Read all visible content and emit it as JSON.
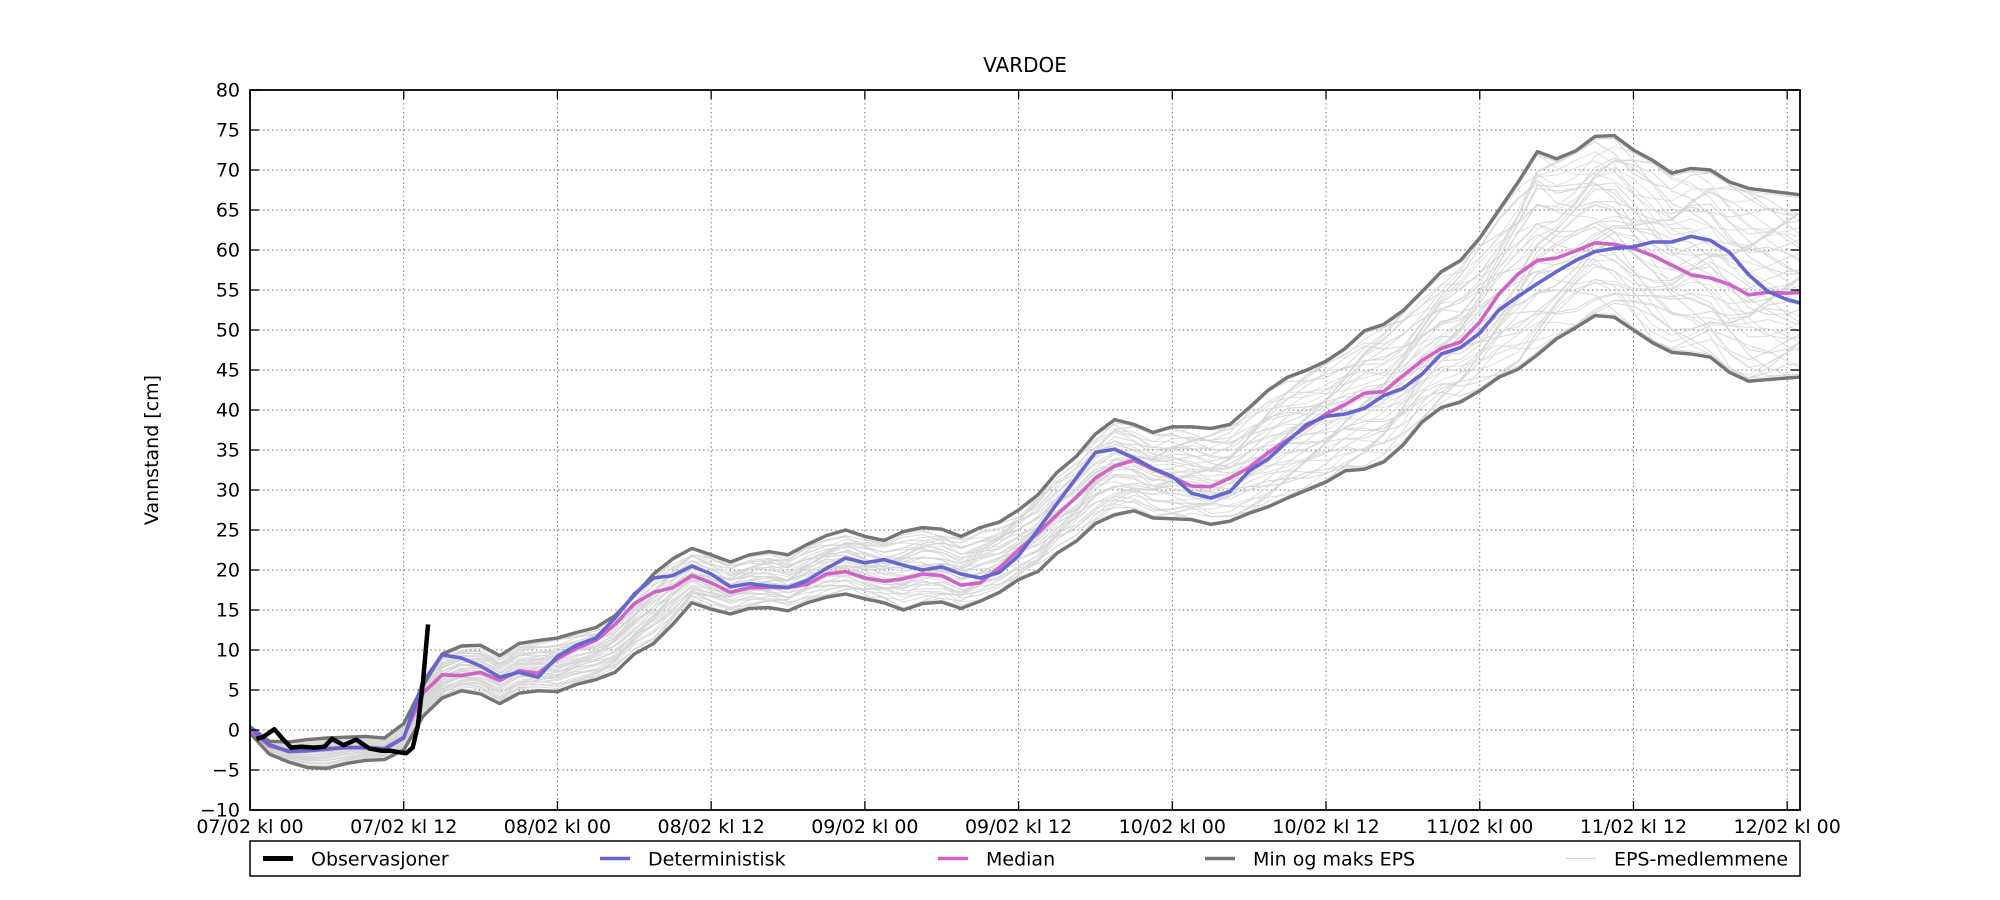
{
  "chart_data": {
    "type": "line",
    "title": "VARDOE",
    "xlabel": "",
    "ylabel": "Vannstand [cm]",
    "ylim": [
      -10,
      80
    ],
    "ytick_step": 5,
    "xlim_hours": [
      0,
      121
    ],
    "grid": true,
    "grid_style": "dotted",
    "legend_position": "bottom-expanded",
    "xticks": [
      {
        "hour": 0,
        "label": "07/02 kl 00"
      },
      {
        "hour": 12,
        "label": "07/02 kl 12"
      },
      {
        "hour": 24,
        "label": "08/02 kl 00"
      },
      {
        "hour": 36,
        "label": "08/02 kl 12"
      },
      {
        "hour": 48,
        "label": "09/02 kl 00"
      },
      {
        "hour": 60,
        "label": "09/02 kl 12"
      },
      {
        "hour": 72,
        "label": "10/02 kl 00"
      },
      {
        "hour": 84,
        "label": "10/02 kl 12"
      },
      {
        "hour": 96,
        "label": "11/02 kl 00"
      },
      {
        "hour": 108,
        "label": "11/02 kl 12"
      },
      {
        "hour": 120,
        "label": "12/02 kl 00"
      }
    ],
    "step_hours": 1.5,
    "tail_hour": 121,
    "series": {
      "observations": {
        "label": "Observasjoner",
        "color": "#000000",
        "line_width": 4.5,
        "points": [
          [
            0.5,
            -1.1
          ],
          [
            1,
            -0.9
          ],
          [
            1.9,
            0.1
          ],
          [
            2.6,
            -1.2
          ],
          [
            3.2,
            -2.2
          ],
          [
            4,
            -2.1
          ],
          [
            5,
            -2.2
          ],
          [
            5.8,
            -2.1
          ],
          [
            6.4,
            -1.1
          ],
          [
            7.3,
            -1.9
          ],
          [
            8.3,
            -1.2
          ],
          [
            9.3,
            -2.3
          ],
          [
            10.3,
            -2.6
          ],
          [
            11,
            -2.6
          ],
          [
            11.7,
            -2.8
          ],
          [
            12.2,
            -2.9
          ],
          [
            12.7,
            -2.2
          ],
          [
            13.1,
            0.5
          ],
          [
            13.5,
            6.0
          ],
          [
            13.9,
            13.2
          ]
        ]
      },
      "deterministic": {
        "label": "Deterministisk",
        "color": "#6666cf",
        "line_width": 3.6,
        "values": [
          0.3,
          -1.8,
          -2.7,
          -2.6,
          -2.4,
          -2.2,
          -2.2,
          -2.4,
          -1.0,
          6.0,
          9.4,
          9.0,
          8.0,
          6.6,
          7.2,
          6.6,
          9.2,
          10.6,
          11.5,
          14.0,
          17.0,
          19.0,
          19.3,
          20.5,
          19.5,
          17.9,
          18.3,
          18.0,
          17.8,
          18.7,
          20.2,
          21.5,
          20.9,
          21.3,
          20.6,
          20.0,
          20.4,
          19.5,
          19.0,
          19.7,
          21.8,
          25.0,
          28.3,
          31.5,
          34.7,
          35.1,
          34.0,
          32.7,
          31.7,
          29.6,
          29.0,
          29.8,
          32.4,
          33.9,
          36.1,
          38.2,
          39.2,
          39.5,
          40.2,
          41.8,
          42.7,
          44.5,
          47.0,
          47.8,
          49.6,
          52.5,
          54.2,
          55.8,
          57.3,
          58.7,
          59.8,
          60.2,
          60.4,
          61.0,
          61.0,
          61.7,
          61.2,
          59.7,
          56.9,
          54.8,
          53.8,
          53.4
        ]
      },
      "median": {
        "label": "Median",
        "color": "#cf63c6",
        "line_width": 3.6,
        "values": [
          0.0,
          -2.0,
          -2.6,
          -2.5,
          -2.3,
          -2.2,
          -2.2,
          -2.3,
          -0.9,
          4.6,
          6.9,
          6.8,
          7.2,
          6.2,
          7.4,
          7.1,
          8.9,
          10.2,
          11.2,
          13.2,
          15.8,
          17.2,
          17.8,
          19.3,
          18.4,
          17.2,
          17.8,
          17.8,
          17.8,
          18.2,
          19.5,
          19.8,
          19.0,
          18.6,
          18.9,
          19.5,
          19.3,
          18.1,
          18.4,
          20.3,
          22.5,
          24.6,
          26.9,
          29.1,
          31.5,
          33.0,
          33.7,
          32.6,
          31.6,
          30.5,
          30.4,
          31.5,
          32.8,
          34.7,
          36.3,
          37.9,
          39.5,
          40.7,
          42.1,
          42.3,
          44.3,
          46.2,
          47.7,
          48.5,
          51.0,
          54.5,
          57.0,
          58.7,
          59.0,
          59.9,
          60.9,
          60.7,
          60.2,
          59.3,
          58.1,
          56.9,
          56.5,
          55.7,
          54.4,
          54.7,
          54.6,
          54.7
        ]
      },
      "eps_max": {
        "label": "Min og maks EPS",
        "color": "#757575",
        "line_width": 3.4,
        "values": [
          0.4,
          -1.4,
          -1.5,
          -1.2,
          -1.0,
          -0.9,
          -0.8,
          -1.0,
          0.8,
          5.5,
          9.5,
          10.5,
          10.6,
          9.3,
          10.8,
          11.2,
          11.5,
          12.2,
          12.8,
          14.3,
          16.8,
          19.5,
          21.4,
          22.7,
          21.9,
          21.0,
          21.9,
          22.3,
          21.9,
          23.2,
          24.3,
          25.0,
          24.2,
          23.7,
          24.8,
          25.3,
          25.1,
          24.2,
          25.3,
          26.0,
          27.5,
          29.4,
          32.2,
          34.2,
          37.0,
          38.8,
          38.2,
          37.2,
          37.9,
          37.9,
          37.7,
          38.2,
          40.3,
          42.5,
          44.1,
          45.0,
          46.1,
          47.7,
          49.9,
          50.7,
          52.4,
          54.8,
          57.3,
          58.7,
          61.5,
          65.0,
          68.5,
          72.3,
          71.4,
          72.4,
          74.2,
          74.3,
          72.5,
          71.2,
          69.6,
          70.2,
          70.0,
          68.5,
          67.7,
          67.4,
          67.1,
          66.9
        ]
      },
      "eps_min": {
        "label": "Min og maks EPS",
        "color": "#757575",
        "line_width": 3.4,
        "values": [
          -0.4,
          -3.0,
          -4.0,
          -4.7,
          -4.8,
          -4.2,
          -3.8,
          -3.7,
          -2.5,
          1.7,
          4.0,
          4.9,
          4.5,
          3.3,
          4.6,
          4.9,
          4.8,
          5.7,
          6.3,
          7.2,
          9.5,
          10.8,
          13.2,
          15.9,
          15.1,
          14.5,
          15.2,
          15.3,
          14.9,
          15.9,
          16.6,
          17.0,
          16.4,
          15.9,
          15.0,
          15.8,
          16.0,
          15.2,
          16.1,
          17.2,
          18.8,
          19.8,
          22.1,
          23.6,
          25.8,
          26.9,
          27.4,
          26.5,
          26.4,
          26.3,
          25.7,
          26.1,
          27.1,
          27.9,
          29.0,
          30.0,
          31.0,
          32.4,
          32.6,
          33.5,
          35.6,
          38.5,
          40.3,
          41.0,
          42.4,
          44.1,
          45.1,
          46.9,
          48.9,
          50.3,
          51.8,
          51.6,
          50.0,
          48.4,
          47.2,
          47.0,
          46.6,
          44.7,
          43.6,
          43.8,
          44.0,
          44.1
        ]
      },
      "eps_members": {
        "label": "EPS-medlemmene",
        "color": "#d6d6d6",
        "line_width": 1.05,
        "count": 51
      }
    },
    "legend": {
      "entries": [
        {
          "label": "Observasjoner",
          "series": "observations"
        },
        {
          "label": "Deterministisk",
          "series": "deterministic"
        },
        {
          "label": "Median",
          "series": "median"
        },
        {
          "label": "Min og maks EPS",
          "series": "eps_max"
        },
        {
          "label": "EPS-medlemmene",
          "series": "eps_members"
        }
      ]
    }
  }
}
